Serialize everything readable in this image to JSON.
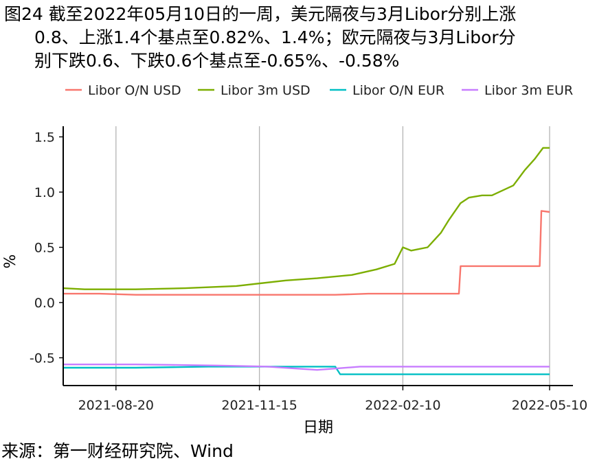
{
  "figure": {
    "title_lines": [
      "图24  截至2022年05月10日的一周，美元隔夜与3月Libor分别上涨",
      "0.8、上涨1.4个基点至0.82%、1.4%；欧元隔夜与3月Libor分",
      "别下跌0.6、下跌0.6个基点至-0.65%、-0.58%"
    ],
    "source": "来源：第一财经研究院、Wind"
  },
  "chart_data": {
    "type": "line",
    "title": "",
    "xlabel": "日期",
    "ylabel": "%",
    "xlim": [
      "2021-07-19",
      "2022-05-10"
    ],
    "ylim": [
      -0.75,
      1.5
    ],
    "x_ticks": [
      "2021-08-20",
      "2021-11-15",
      "2022-02-10",
      "2022-05-10"
    ],
    "y_ticks": [
      -0.5,
      0.0,
      0.5,
      1.0,
      1.5
    ],
    "y_tick_labels": [
      "-0.5",
      "0.0",
      "0.5",
      "1.0",
      "1.5"
    ],
    "grid": "vertical-major",
    "legend_position": "top",
    "colors": {
      "Libor O/N USD": "#F8766D",
      "Libor 3m USD": "#7CAE00",
      "Libor O/N EUR": "#00BFC4",
      "Libor 3m EUR": "#C77CFF"
    },
    "series": [
      {
        "name": "Libor O/N USD",
        "x": [
          "2021-07-19",
          "2021-08-10",
          "2021-09-01",
          "2021-10-01",
          "2021-11-01",
          "2021-12-01",
          "2021-12-31",
          "2022-01-20",
          "2022-02-10",
          "2022-03-16",
          "2022-03-17",
          "2022-04-20",
          "2022-05-04",
          "2022-05-05",
          "2022-05-10"
        ],
        "values": [
          0.08,
          0.08,
          0.07,
          0.07,
          0.07,
          0.07,
          0.07,
          0.08,
          0.08,
          0.08,
          0.33,
          0.33,
          0.33,
          0.83,
          0.82
        ]
      },
      {
        "name": "Libor 3m USD",
        "x": [
          "2021-07-19",
          "2021-08-01",
          "2021-09-01",
          "2021-10-01",
          "2021-11-01",
          "2021-12-01",
          "2021-12-20",
          "2022-01-10",
          "2022-01-25",
          "2022-02-05",
          "2022-02-10",
          "2022-02-15",
          "2022-02-25",
          "2022-03-05",
          "2022-03-10",
          "2022-03-17",
          "2022-03-22",
          "2022-03-30",
          "2022-04-05",
          "2022-04-18",
          "2022-04-25",
          "2022-05-01",
          "2022-05-06",
          "2022-05-10"
        ],
        "values": [
          0.13,
          0.12,
          0.12,
          0.13,
          0.15,
          0.2,
          0.22,
          0.25,
          0.3,
          0.35,
          0.5,
          0.47,
          0.5,
          0.63,
          0.75,
          0.9,
          0.95,
          0.97,
          0.97,
          1.06,
          1.2,
          1.3,
          1.4,
          1.4
        ]
      },
      {
        "name": "Libor O/N EUR",
        "x": [
          "2021-07-19",
          "2021-09-01",
          "2021-10-15",
          "2021-12-01",
          "2021-12-31",
          "2022-01-03",
          "2022-02-10",
          "2022-05-10"
        ],
        "values": [
          -0.59,
          -0.59,
          -0.58,
          -0.58,
          -0.58,
          -0.65,
          -0.65,
          -0.65
        ]
      },
      {
        "name": "Libor 3m EUR",
        "x": [
          "2021-07-19",
          "2021-09-01",
          "2021-10-20",
          "2021-11-20",
          "2021-12-20",
          "2021-12-29",
          "2022-01-15",
          "2022-02-10",
          "2022-05-10"
        ],
        "values": [
          -0.56,
          -0.56,
          -0.57,
          -0.58,
          -0.61,
          -0.6,
          -0.58,
          -0.58,
          -0.58
        ]
      }
    ]
  }
}
